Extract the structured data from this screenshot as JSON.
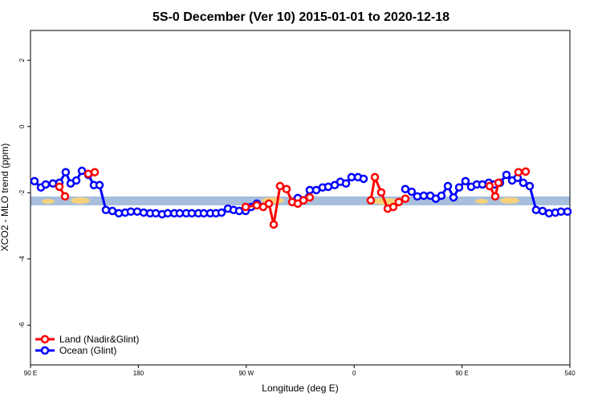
{
  "chart_data": {
    "type": "line",
    "title": "5S-0 December (Ver 10)   2015-01-01 to 2020-12-18",
    "x_label": "Longitude (deg E)",
    "y_label": "XCO2 - MLO trend (ppm)",
    "xlim": [
      90,
      540
    ],
    "ylim": [
      -7.2,
      2.9
    ],
    "xticks": [
      {
        "value": 90,
        "label": "90 E"
      },
      180,
      {
        "value": 270,
        "label": "90 W"
      },
      {
        "value": 360,
        "label": "0"
      },
      {
        "value": 450,
        "label": "90 E"
      },
      540
    ],
    "yticks": [
      -6,
      -4,
      -2,
      0,
      2
    ],
    "legend": "bottom-left",
    "series": [
      {
        "name": "Land (Nadir&Glint)",
        "color": "#ff0000",
        "x": [
          114.1,
          118.8,
          null,
          138.2,
          143.6,
          null,
          269.5,
          278.8,
          284.2,
          288.9,
          292.9,
          298.2,
          303.6,
          308.3,
          313.0,
          317.7,
          323.0,
          null,
          373.9,
          377.3,
          382.6,
          388.0,
          392.7,
          397.3,
          402.7,
          null,
          473.0,
          477.7,
          480.4,
          null,
          497.1,
          503.1
        ],
        "values": [
          -1.82,
          -2.11,
          null,
          -1.43,
          -1.38,
          null,
          -2.43,
          -2.38,
          -2.43,
          -2.33,
          -2.96,
          -1.8,
          -1.89,
          -2.28,
          -2.33,
          -2.23,
          -2.14,
          null,
          -2.23,
          -1.53,
          -1.99,
          -2.48,
          -2.43,
          -2.28,
          -2.18,
          null,
          -1.8,
          -2.11,
          -1.7,
          null,
          -1.38,
          -1.36
        ]
      },
      {
        "name": "Ocean (Glint)",
        "color": "#0000ff",
        "x": [
          93.3,
          98.7,
          102.7,
          108.7,
          114.1,
          119.4,
          123.5,
          128.2,
          132.9,
          138.2,
          142.9,
          147.6,
          152.9,
          158.3,
          163.7,
          169.0,
          173.7,
          179.1,
          184.4,
          189.8,
          194.5,
          199.8,
          204.5,
          209.9,
          214.5,
          219.9,
          224.6,
          230.0,
          234.6,
          240.0,
          244.7,
          249.4,
          254.7,
          259.4,
          264.1,
          269.5,
          274.1,
          278.8,
          null,
          313.0,
          317.7,
          323.0,
          328.4,
          333.7,
          338.4,
          343.8,
          348.5,
          353.2,
          357.8,
          363.2,
          367.9,
          null,
          402.7,
          408.0,
          412.7,
          418.1,
          423.5,
          428.1,
          432.8,
          438.2,
          442.9,
          447.6,
          452.9,
          457.6,
          462.3,
          467.0,
          472.3,
          477.0,
          481.7,
          487.1,
          491.8,
          496.4,
          501.1,
          506.5,
          511.8,
          517.2,
          522.6,
          527.9,
          532.6,
          538.0
        ],
        "values": [
          -1.65,
          -1.84,
          -1.75,
          -1.72,
          -1.7,
          -1.38,
          -1.72,
          -1.63,
          -1.34,
          -1.46,
          -1.77,
          -1.77,
          -2.52,
          -2.55,
          -2.62,
          -2.6,
          -2.57,
          -2.57,
          -2.6,
          -2.62,
          -2.62,
          -2.65,
          -2.62,
          -2.62,
          -2.62,
          -2.62,
          -2.62,
          -2.62,
          -2.62,
          -2.62,
          -2.62,
          -2.6,
          -2.48,
          -2.52,
          -2.55,
          -2.55,
          -2.43,
          -2.33,
          null,
          -2.16,
          -2.23,
          -1.92,
          -1.92,
          -1.84,
          -1.82,
          -1.77,
          -1.67,
          -1.72,
          -1.53,
          -1.53,
          -1.58,
          null,
          -1.89,
          -1.97,
          -2.11,
          -2.09,
          -2.09,
          -2.18,
          -2.09,
          -1.8,
          -2.14,
          -1.84,
          -1.65,
          -1.82,
          -1.75,
          -1.75,
          -1.7,
          -1.75,
          -1.7,
          -1.46,
          -1.63,
          -1.55,
          -1.7,
          -1.8,
          -2.52,
          -2.55,
          -2.62,
          -2.6,
          -2.57,
          -2.57
        ]
      }
    ]
  }
}
